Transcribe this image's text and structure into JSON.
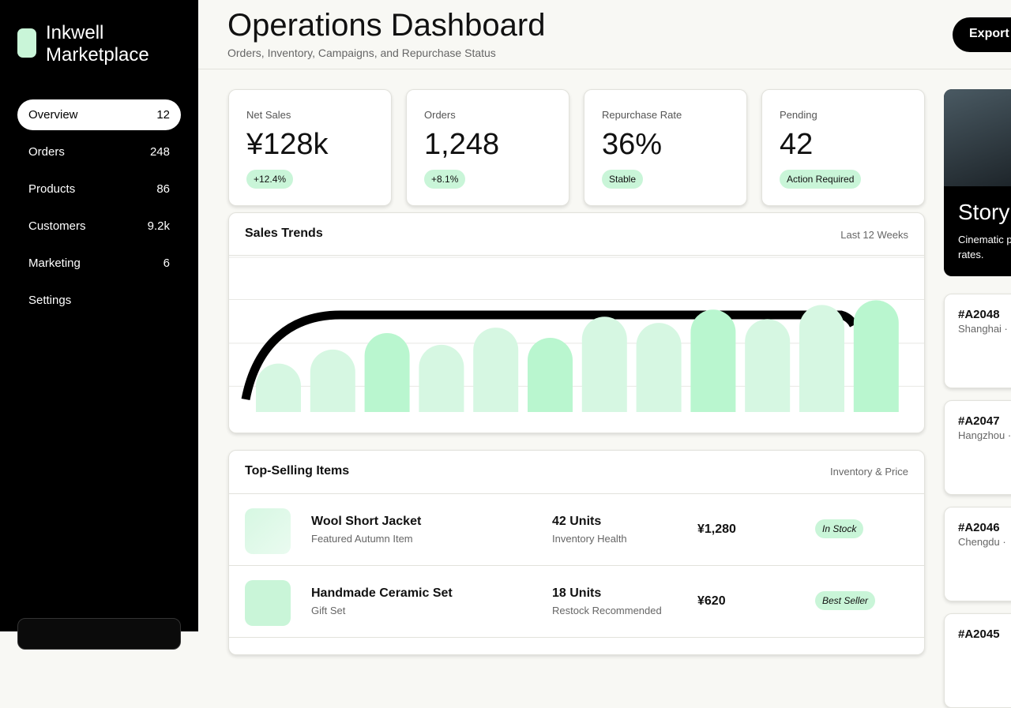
{
  "sidebar": {
    "brand": [
      "Inkwell",
      "Marketplace"
    ],
    "nav": [
      {
        "label": "Overview",
        "count": "12"
      },
      {
        "label": "Orders",
        "count": "248"
      },
      {
        "label": "Products",
        "count": "86"
      },
      {
        "label": "Customers",
        "count": "9.2k"
      },
      {
        "label": "Marketing",
        "count": "6"
      },
      {
        "label": "Settings"
      }
    ]
  },
  "header": {
    "title": "Operations Dashboard",
    "subtitle": "Orders, Inventory, Campaigns, and Repurchase Status",
    "export": "Export"
  },
  "kpis": [
    {
      "label": "Net Sales",
      "value": "¥128k",
      "badge": "+12.4%"
    },
    {
      "label": "Orders",
      "value": "1,248",
      "badge": "+8.1%"
    },
    {
      "label": "Repurchase Rate",
      "value": "36%",
      "badge": "Stable"
    },
    {
      "label": "Pending",
      "value": "42",
      "badge": "Action Required"
    }
  ],
  "chart_data": {
    "type": "bar",
    "title": "Sales Trends",
    "subtitle": "Last 12 Weeks",
    "categories": [
      null,
      null,
      null,
      null,
      null,
      null,
      null,
      null,
      null,
      null,
      null,
      null
    ],
    "values": [
      62,
      80,
      101,
      86,
      108,
      95,
      122,
      114,
      131,
      119,
      137,
      143
    ],
    "colors": [
      "#d6f7e2",
      "#d6f7e2",
      "#b9f6cf",
      "#d6f7e2",
      "#d6f7e2",
      "#b9f6cf",
      "#d6f7e2",
      "#d6f7e2",
      "#b9f6cf",
      "#d6f7e2",
      "#d6f7e2",
      "#b9f6cf"
    ],
    "ylim": [
      0,
      200
    ],
    "yticks": [
      33,
      88,
      144,
      198
    ],
    "grid": true
  },
  "top_items": {
    "title": "Top-Selling Items",
    "subtitle": "Inventory & Price",
    "rows": [
      {
        "name": "Wool Short Jacket",
        "sub": "Featured Autumn Item",
        "units": "42 Units",
        "units_sub": "Inventory Health",
        "price": "¥1,280",
        "status": "In Stock"
      },
      {
        "name": "Handmade Ceramic Set",
        "sub": "Gift Set",
        "units": "18 Units",
        "units_sub": "Restock Recommended",
        "price": "¥620",
        "status": "Best Seller"
      }
    ]
  },
  "side": {
    "story": {
      "title": "Story",
      "lines": [
        "Cinematic p",
        "rates."
      ]
    },
    "orders": [
      {
        "id": "#A2048",
        "city": "Shanghai ·"
      },
      {
        "id": "#A2047",
        "city": "Hangzhou ·"
      },
      {
        "id": "#A2046",
        "city": "Chengdu ·"
      },
      {
        "id": "#A2045"
      }
    ]
  }
}
